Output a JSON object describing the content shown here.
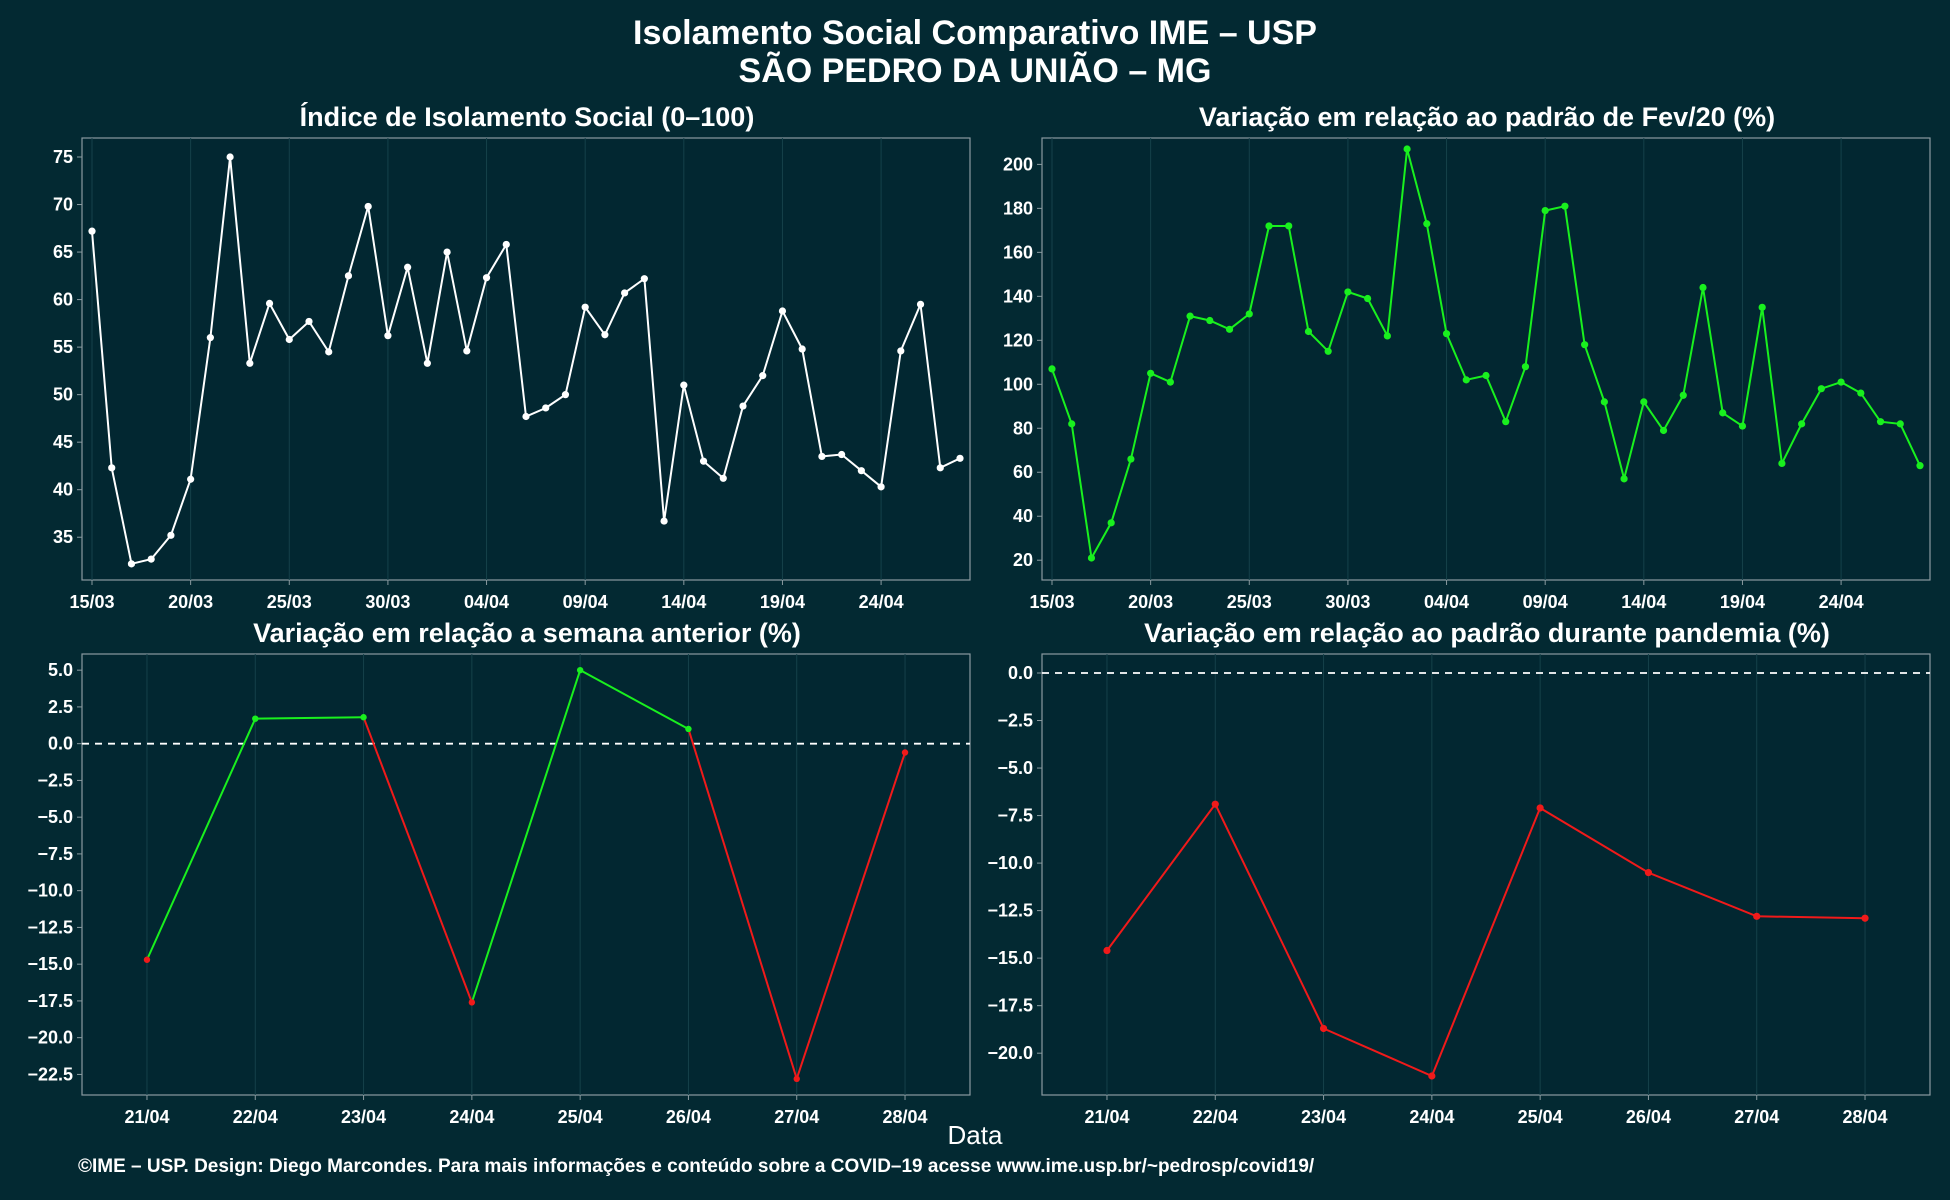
{
  "title": "Isolamento Social Comparativo IME – USP",
  "subtitle": "SÃO PEDRO DA UNIÃO – MG",
  "xlabel": "Data",
  "footer": "©IME – USP. Design: Diego Marcondes. Para mais informações e conteúdo sobre a COVID–19 acesse www.ime.usp.br/~pedrosp/covid19/",
  "colors": {
    "background": "#032932",
    "panel": "#022731",
    "white_line": "#ffffff",
    "green": "#19f01e",
    "red": "#f01a1a",
    "grid": "#15414a"
  },
  "chart_data": [
    {
      "type": "line",
      "title": "Índice de Isolamento Social (0–100)",
      "x_tick_labels": [
        "15/03",
        "20/03",
        "25/03",
        "30/03",
        "04/04",
        "09/04",
        "14/04",
        "19/04",
        "24/04"
      ],
      "y_ticks": [
        35,
        40,
        45,
        50,
        55,
        60,
        65,
        70,
        75
      ],
      "ylim": [
        30.5,
        77
      ],
      "series": [
        {
          "color": "#ffffff",
          "values": [
            67.2,
            42.3,
            32.2,
            32.7,
            35.2,
            41.1,
            56,
            75,
            53.3,
            59.6,
            55.8,
            57.7,
            54.5,
            62.5,
            69.8,
            56.2,
            63.4,
            53.3,
            65,
            54.6,
            62.3,
            65.8,
            47.7,
            48.6,
            50,
            59.2,
            56.3,
            60.7,
            62.2,
            36.7,
            51,
            43,
            41.2,
            48.8,
            52,
            58.8,
            54.8,
            43.5,
            43.7,
            42,
            40.3,
            54.6,
            59.5,
            42.3,
            43.3
          ]
        }
      ]
    },
    {
      "type": "line",
      "title": "Variação em relação ao padrão de Fev/20 (%)",
      "x_tick_labels": [
        "15/03",
        "20/03",
        "25/03",
        "30/03",
        "04/04",
        "09/04",
        "14/04",
        "19/04",
        "24/04"
      ],
      "y_ticks": [
        20,
        40,
        60,
        80,
        100,
        120,
        140,
        160,
        180,
        200
      ],
      "ylim": [
        11,
        212
      ],
      "series": [
        {
          "color": "#19f01e",
          "values": [
            107,
            82,
            21,
            37,
            66,
            105,
            101,
            131,
            129,
            125,
            132,
            172,
            172,
            124,
            115,
            142,
            139,
            122,
            207,
            173,
            123,
            102,
            104,
            83,
            108,
            179,
            181,
            118,
            92,
            57,
            92,
            79,
            95,
            144,
            87,
            81,
            135,
            64,
            82,
            98,
            101,
            96,
            83,
            82,
            63
          ]
        }
      ]
    },
    {
      "type": "line",
      "title": "Variação em relação a semana anterior (%)",
      "categories": [
        "21/04",
        "22/04",
        "23/04",
        "24/04",
        "25/04",
        "26/04",
        "27/04",
        "28/04"
      ],
      "y_ticks": [
        5.0,
        2.5,
        0.0,
        -2.5,
        -5.0,
        -7.5,
        -10.0,
        -12.5,
        -15.0,
        -17.5,
        -20.0,
        -22.5
      ],
      "y_tick_labels": [
        "5.0",
        "2.5",
        "0.0",
        "−2.5",
        "−5.0",
        "−7.5",
        "−10.0",
        "−12.5",
        "−15.0",
        "−17.5",
        "−20.0",
        "−22.5"
      ],
      "ylim": [
        -23.9,
        6.1
      ],
      "reference_line": 0,
      "series": [
        {
          "values": [
            -14.7,
            1.7,
            1.8,
            -17.6,
            5.0,
            1.0,
            -22.8,
            -0.6
          ],
          "positive_color": "#19f01e",
          "negative_color": "#f01a1a"
        }
      ]
    },
    {
      "type": "line",
      "title": "Variação em relação ao padrão durante pandemia (%)",
      "categories": [
        "21/04",
        "22/04",
        "23/04",
        "24/04",
        "25/04",
        "26/04",
        "27/04",
        "28/04"
      ],
      "y_ticks": [
        0.0,
        -2.5,
        -5.0,
        -7.5,
        -10.0,
        -12.5,
        -15.0,
        -17.5,
        -20.0
      ],
      "y_tick_labels": [
        "0.0",
        "−2.5",
        "−5.0",
        "−7.5",
        "−10.0",
        "−12.5",
        "−15.0",
        "−17.5",
        "−20.0"
      ],
      "ylim": [
        -22.2,
        1.0
      ],
      "reference_line": 0,
      "series": [
        {
          "values": [
            -14.6,
            -6.9,
            -18.7,
            -21.2,
            -7.1,
            -10.5,
            -12.8,
            -12.9
          ],
          "color": "#f01a1a"
        }
      ]
    }
  ]
}
